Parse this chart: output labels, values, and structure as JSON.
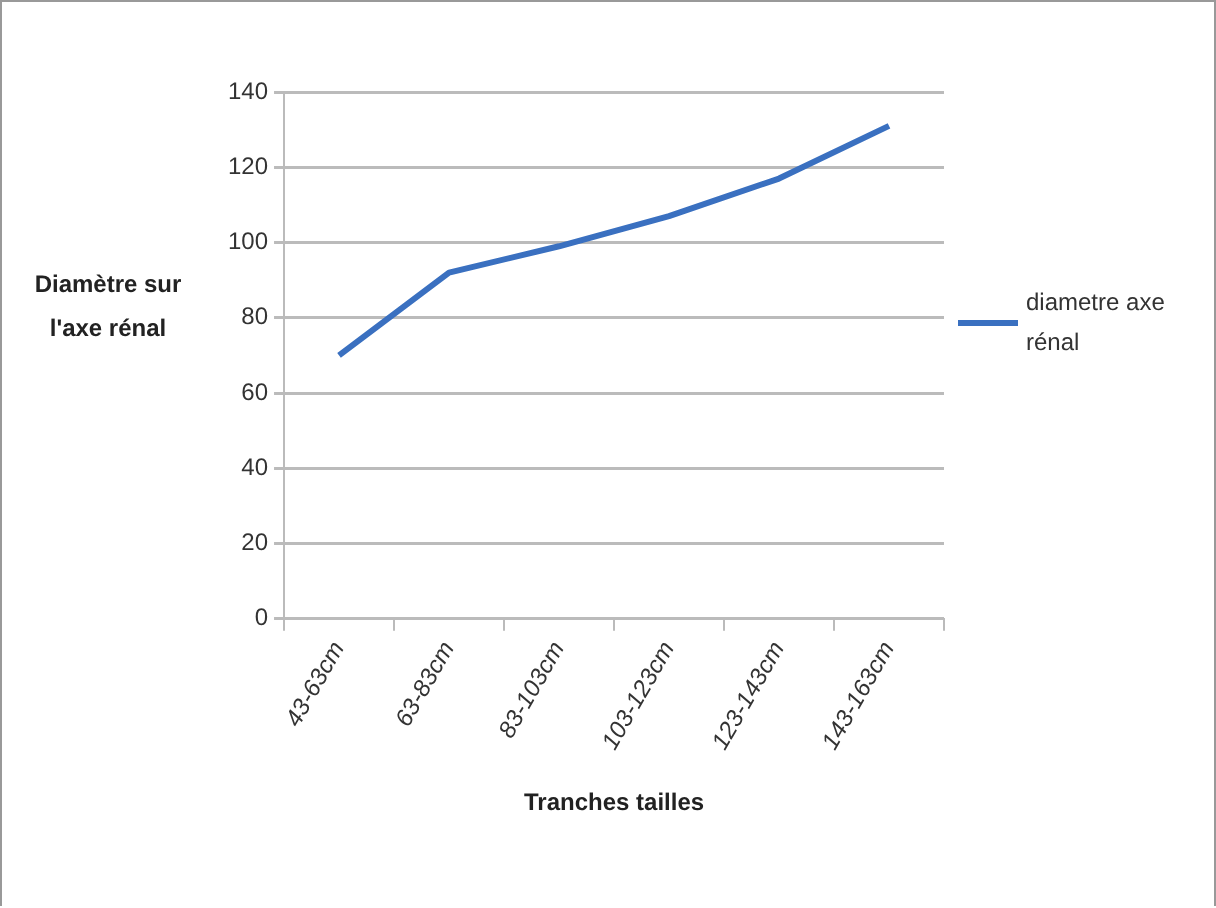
{
  "chart_data": {
    "type": "line",
    "xlabel": "Tranches tailles",
    "ylabel": "Diamètre  sur l'axe rénal",
    "categories": [
      "43-63cm",
      "63-83cm",
      "83-103cm",
      "103-123cm",
      "123-143cm",
      "143-163cm"
    ],
    "series": [
      {
        "name": "diametre axe rénal",
        "color": "#3a70c0",
        "values": [
          70,
          92,
          99,
          107,
          117,
          131
        ]
      }
    ],
    "ylim": [
      0,
      140
    ],
    "yticks": [
      0,
      20,
      40,
      60,
      80,
      100,
      120,
      140
    ],
    "grid": "y",
    "legend": "right",
    "marker": "none",
    "line_style": "solid"
  }
}
